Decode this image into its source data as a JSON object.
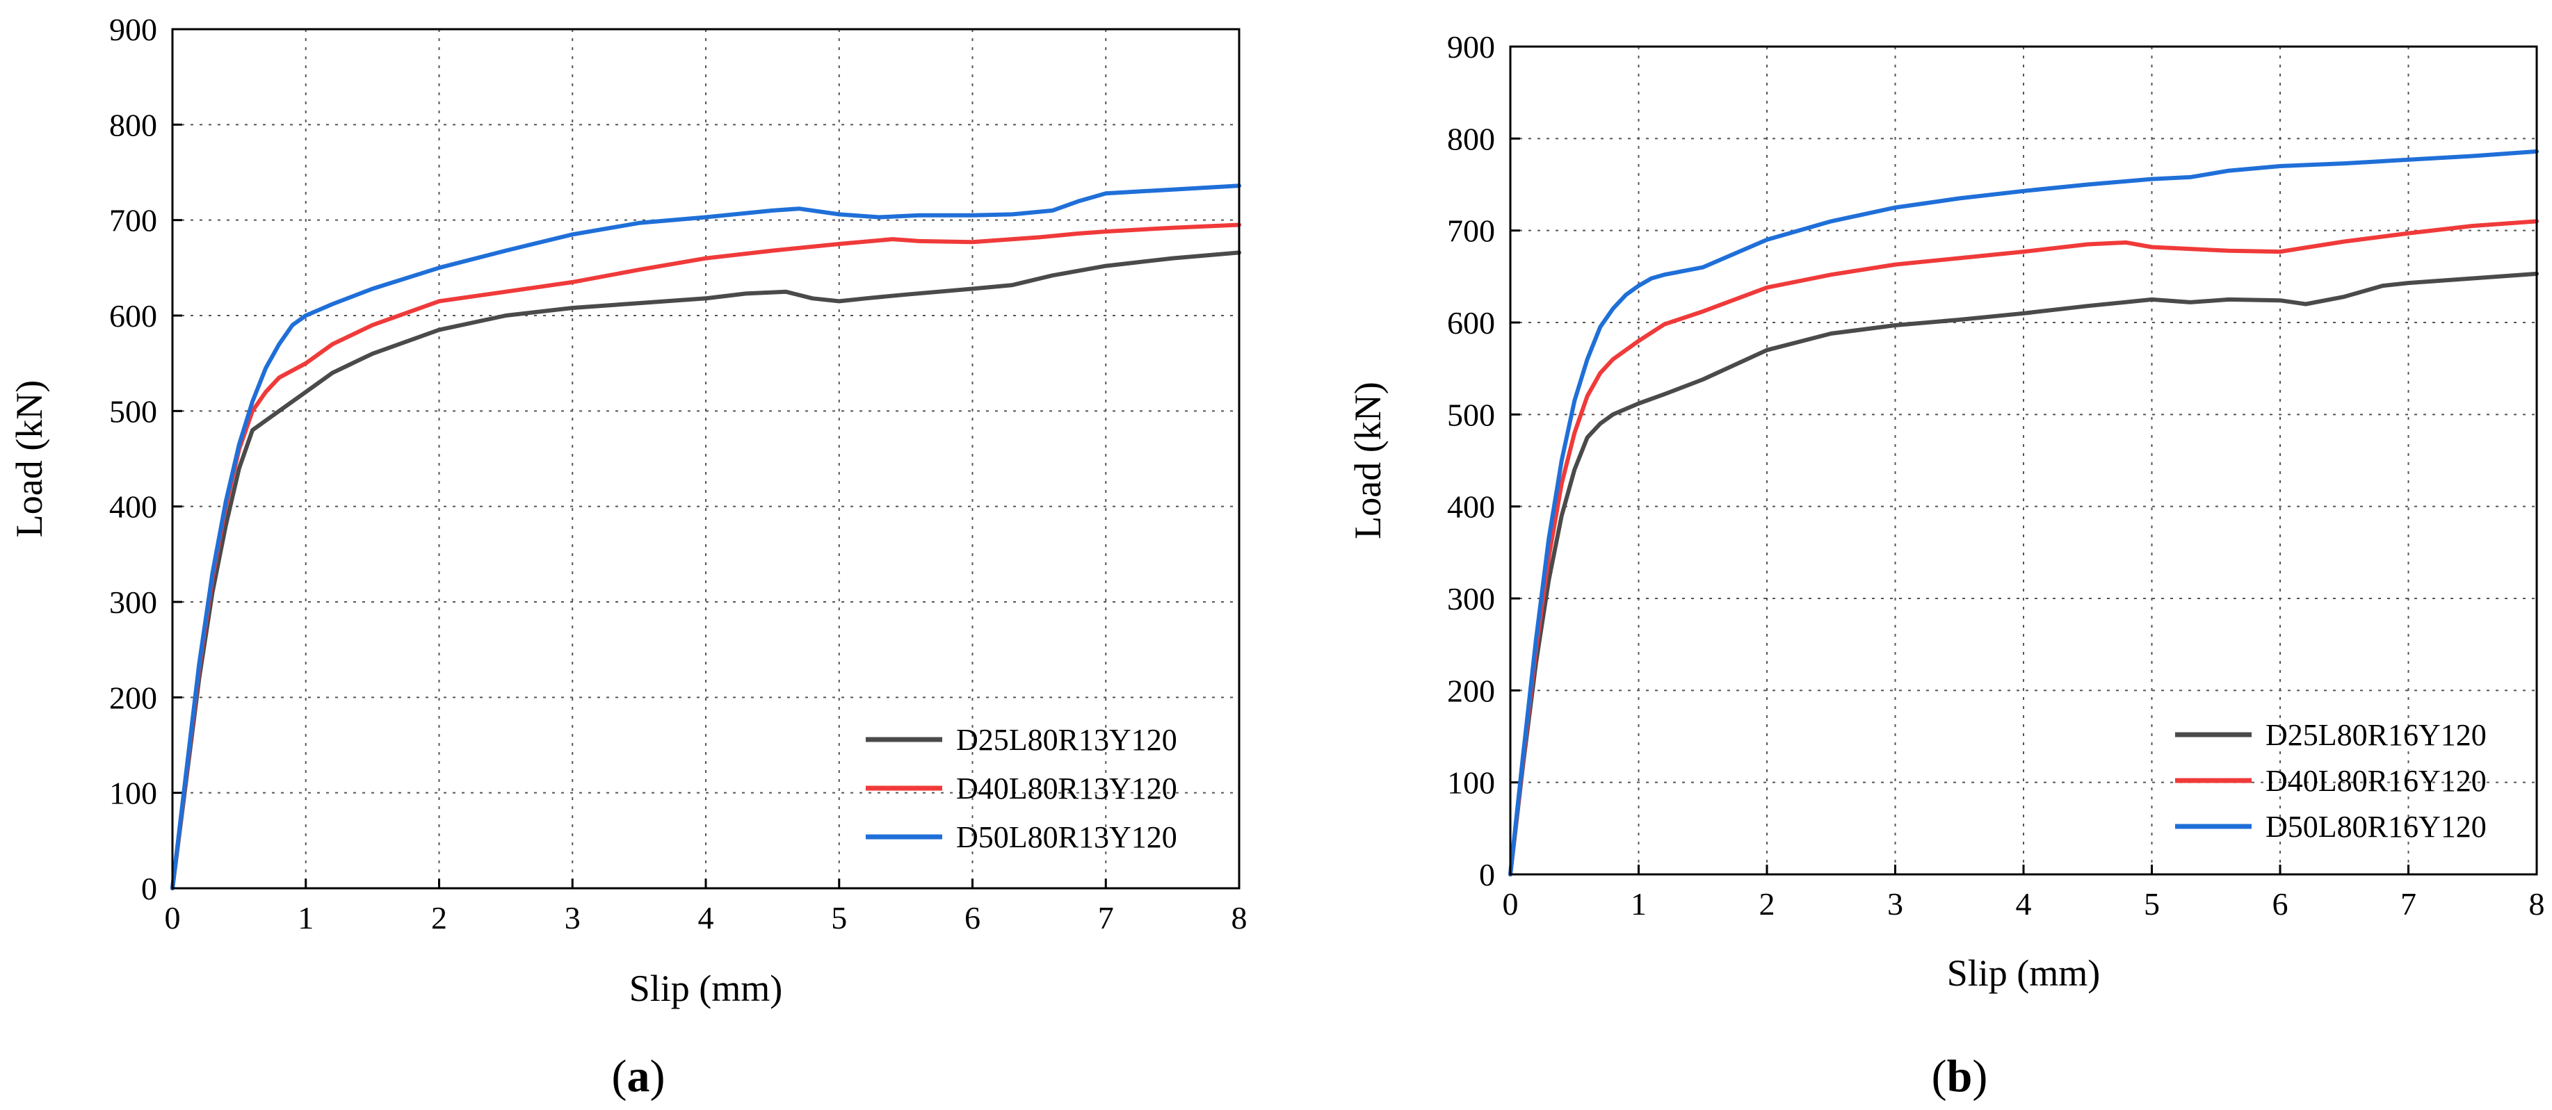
{
  "chart_data": [
    {
      "type": "line",
      "panel_label": "a",
      "xlabel": "Slip (mm)",
      "ylabel": "Load (kN)",
      "xlim": [
        0,
        8
      ],
      "ylim": [
        0,
        900
      ],
      "xticks": [
        0,
        1,
        2,
        3,
        4,
        5,
        6,
        7,
        8
      ],
      "yticks": [
        0,
        100,
        200,
        300,
        400,
        500,
        600,
        700,
        800,
        900
      ],
      "grid": true,
      "legend_position": "bottom-right",
      "series": [
        {
          "name": "D25L80R13Y120",
          "color": "#4a4a4a",
          "x": [
            0,
            0.1,
            0.2,
            0.3,
            0.4,
            0.5,
            0.6,
            0.7,
            0.8,
            1.0,
            1.2,
            1.5,
            2.0,
            2.5,
            3.0,
            3.5,
            4.0,
            4.3,
            4.6,
            4.8,
            5.0,
            5.2,
            5.5,
            6.0,
            6.3,
            6.6,
            7.0,
            7.5,
            8.0
          ],
          "y": [
            0,
            110,
            220,
            310,
            380,
            440,
            480,
            490,
            500,
            520,
            540,
            560,
            585,
            600,
            608,
            613,
            618,
            623,
            625,
            618,
            615,
            618,
            622,
            628,
            632,
            642,
            652,
            660,
            666
          ]
        },
        {
          "name": "D40L80R13Y120",
          "color": "#f03a3a",
          "x": [
            0,
            0.1,
            0.2,
            0.3,
            0.4,
            0.5,
            0.6,
            0.7,
            0.8,
            1.0,
            1.2,
            1.5,
            2.0,
            2.5,
            3.0,
            3.5,
            4.0,
            4.5,
            5.0,
            5.4,
            5.6,
            6.0,
            6.5,
            6.8,
            7.0,
            7.5,
            8.0
          ],
          "y": [
            0,
            115,
            230,
            325,
            400,
            460,
            500,
            520,
            535,
            550,
            570,
            590,
            615,
            625,
            635,
            648,
            660,
            668,
            675,
            680,
            678,
            677,
            682,
            686,
            688,
            692,
            695
          ]
        },
        {
          "name": "D50L80R13Y120",
          "color": "#1f6fd8",
          "x": [
            0,
            0.1,
            0.2,
            0.3,
            0.4,
            0.5,
            0.6,
            0.7,
            0.8,
            0.9,
            1.0,
            1.2,
            1.5,
            2.0,
            2.5,
            3.0,
            3.5,
            4.0,
            4.5,
            4.7,
            5.0,
            5.3,
            5.6,
            6.0,
            6.3,
            6.6,
            6.8,
            7.0,
            7.5,
            8.0
          ],
          "y": [
            0,
            118,
            235,
            330,
            405,
            465,
            510,
            545,
            570,
            590,
            600,
            612,
            628,
            650,
            668,
            685,
            697,
            703,
            710,
            712,
            706,
            703,
            705,
            705,
            706,
            710,
            720,
            728,
            732,
            736
          ]
        }
      ]
    },
    {
      "type": "line",
      "panel_label": "b",
      "xlabel": "Slip (mm)",
      "ylabel": "Load (kN)",
      "xlim": [
        0,
        8
      ],
      "ylim": [
        0,
        900
      ],
      "xticks": [
        0,
        1,
        2,
        3,
        4,
        5,
        6,
        7,
        8
      ],
      "yticks": [
        0,
        100,
        200,
        300,
        400,
        500,
        600,
        700,
        800,
        900
      ],
      "grid": true,
      "legend_position": "bottom-right",
      "series": [
        {
          "name": "D25L80R16Y120",
          "color": "#4a4a4a",
          "x": [
            0,
            0.1,
            0.2,
            0.3,
            0.4,
            0.5,
            0.6,
            0.7,
            0.8,
            1.0,
            1.2,
            1.5,
            2.0,
            2.5,
            3.0,
            3.5,
            4.0,
            4.5,
            5.0,
            5.3,
            5.6,
            6.0,
            6.2,
            6.5,
            6.8,
            7.0,
            7.5,
            8.0
          ],
          "y": [
            0,
            120,
            230,
            320,
            390,
            440,
            475,
            490,
            500,
            512,
            522,
            538,
            570,
            588,
            597,
            603,
            610,
            618,
            625,
            622,
            625,
            624,
            620,
            628,
            640,
            643,
            648,
            653
          ]
        },
        {
          "name": "D40L80R16Y120",
          "color": "#f03a3a",
          "x": [
            0,
            0.1,
            0.2,
            0.3,
            0.4,
            0.5,
            0.6,
            0.7,
            0.8,
            1.0,
            1.2,
            1.5,
            2.0,
            2.5,
            3.0,
            3.5,
            4.0,
            4.5,
            4.8,
            5.0,
            5.3,
            5.6,
            6.0,
            6.5,
            7.0,
            7.5,
            8.0
          ],
          "y": [
            0,
            125,
            245,
            345,
            425,
            480,
            520,
            545,
            560,
            580,
            598,
            612,
            638,
            652,
            663,
            670,
            677,
            685,
            687,
            682,
            680,
            678,
            677,
            688,
            697,
            705,
            710
          ]
        },
        {
          "name": "D50L80R16Y120",
          "color": "#1f6fd8",
          "x": [
            0,
            0.1,
            0.2,
            0.3,
            0.4,
            0.5,
            0.6,
            0.7,
            0.8,
            0.9,
            1.0,
            1.1,
            1.2,
            1.5,
            2.0,
            2.5,
            3.0,
            3.5,
            4.0,
            4.5,
            5.0,
            5.3,
            5.6,
            6.0,
            6.5,
            7.0,
            7.5,
            8.0
          ],
          "y": [
            0,
            130,
            255,
            365,
            450,
            515,
            560,
            595,
            615,
            630,
            640,
            648,
            652,
            660,
            690,
            710,
            725,
            735,
            743,
            750,
            756,
            758,
            765,
            770,
            773,
            777,
            781,
            786
          ]
        }
      ]
    }
  ]
}
